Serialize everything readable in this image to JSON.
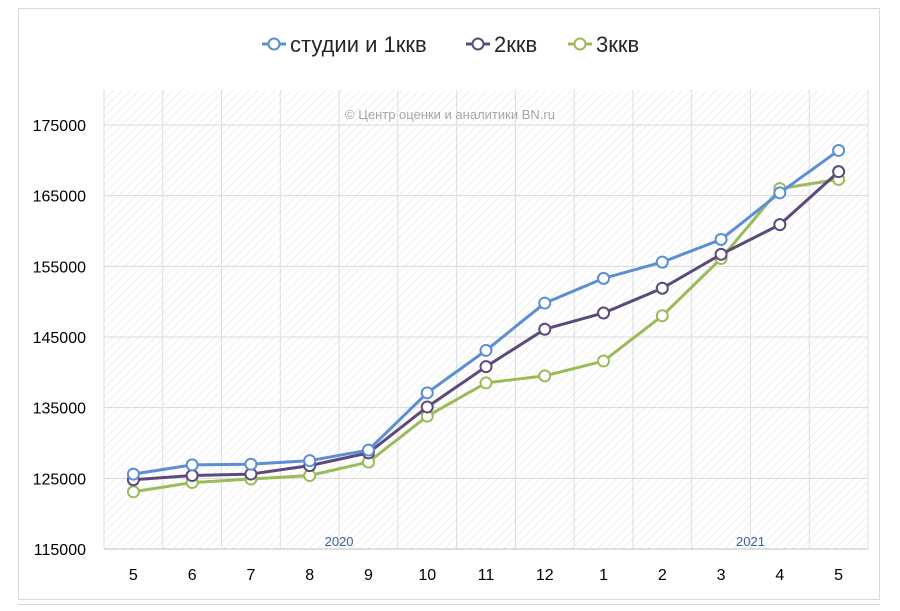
{
  "chart_data": {
    "type": "line",
    "categories": [
      "5",
      "6",
      "7",
      "8",
      "9",
      "10",
      "11",
      "12",
      "1",
      "2",
      "3",
      "4",
      "5"
    ],
    "ylim": [
      115000,
      175000
    ],
    "yticks": [
      115000,
      125000,
      135000,
      145000,
      155000,
      165000,
      175000
    ],
    "grid": true,
    "legend_position": "top",
    "series": [
      {
        "name": "студии и 1ккв",
        "color": "#5b8fd3",
        "values": [
          125600,
          126900,
          127000,
          127500,
          129000,
          137100,
          143100,
          149800,
          153300,
          155600,
          158800,
          165400,
          171400
        ]
      },
      {
        "name": "2ккв",
        "color": "#5b4a7a",
        "values": [
          124800,
          125400,
          125600,
          126800,
          128600,
          135100,
          140800,
          146100,
          148400,
          151900,
          156700,
          160900,
          168400
        ]
      },
      {
        "name": "3ккв",
        "color": "#9bbb59",
        "values": [
          123100,
          124400,
          124900,
          125400,
          127300,
          133800,
          138500,
          139500,
          141600,
          148000,
          156100,
          166000,
          167300
        ]
      }
    ],
    "annotations": [
      {
        "text": "2020",
        "category_index": 3.5,
        "color": "#3a5fa0"
      },
      {
        "text": "2021",
        "category_index": 10.5,
        "color": "#3a5fa0"
      }
    ],
    "watermark": "© Центр оценки и аналитики BN.ru"
  }
}
